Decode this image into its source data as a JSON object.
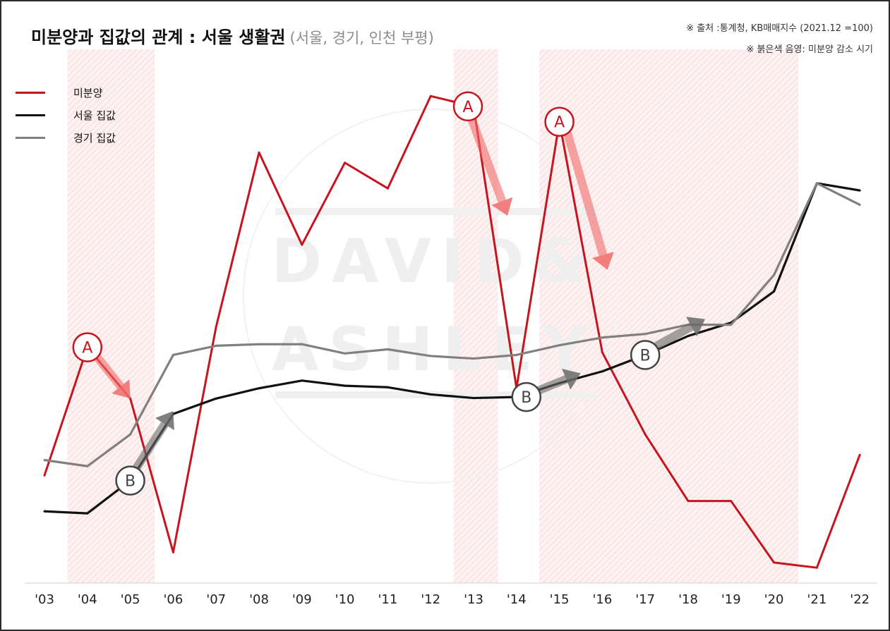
{
  "header": {
    "title": "미분양과 집값의 관계 : 서울 생활권",
    "subtitle": "(서울, 경기, 인천 부평)"
  },
  "notes": {
    "source": "※ 출처 :통계청, KB매매지수 (2021.12 =100)",
    "shading": "※ 붉은색 음영: 미분양 감소 시기"
  },
  "watermark": {
    "line1": "DAVID&",
    "line2": "ASHLEY"
  },
  "colors": {
    "unsold": "#c8141e",
    "seoul": "#111111",
    "gyeonggi": "#808080",
    "shade": "#fbe6e6",
    "arrow_a": "#f26b6b",
    "arrow_b": "#6a6a6a"
  },
  "chart_data": {
    "type": "line",
    "categories": [
      "'03",
      "'04",
      "'05",
      "'06",
      "'07",
      "'08",
      "'09",
      "'10",
      "'11",
      "'12",
      "'13",
      "'14",
      "'15",
      "'16",
      "'17",
      "'18",
      "'19",
      "'20",
      "'21",
      "'22"
    ],
    "series": [
      {
        "name": "미분양",
        "color": "#c8141e",
        "values": [
          21,
          46,
          36,
          6,
          50,
          84,
          66,
          82,
          77,
          95,
          93,
          38,
          90,
          45,
          29,
          16,
          16,
          4,
          3,
          25
        ]
      },
      {
        "name": "서울 집값",
        "color": "#111111",
        "values": [
          14,
          13.6,
          20,
          33,
          36,
          38,
          39.5,
          38.5,
          38.2,
          36.8,
          36.1,
          36.3,
          39,
          41.3,
          44.5,
          48.2,
          50.8,
          56.9,
          78,
          76.6
        ]
      },
      {
        "name": "경기 집값",
        "color": "#808080",
        "values": [
          24,
          22.8,
          29,
          44.5,
          46.3,
          46.6,
          46.6,
          44.8,
          45.6,
          44.3,
          43.8,
          44.5,
          46.4,
          47.9,
          48.6,
          50.4,
          50.4,
          60.1,
          78,
          73.8
        ]
      }
    ],
    "shaded_periods": [
      [
        "'04",
        "'06"
      ],
      [
        "'13",
        "'14"
      ],
      [
        "'15",
        "'21"
      ]
    ],
    "annotations": [
      {
        "label": "A",
        "at": "'04",
        "series": "미분양"
      },
      {
        "label": "A",
        "at": "'13",
        "series": "미분양"
      },
      {
        "label": "A",
        "at": "'15",
        "series": "미분양"
      },
      {
        "label": "B",
        "at": "'05",
        "series": "서울 집값"
      },
      {
        "label": "B",
        "at": "'14",
        "series": "서울 집값"
      },
      {
        "label": "B",
        "at": "'17",
        "series": "서울 집값"
      }
    ],
    "legend_position": "top-left",
    "grid": false,
    "title": "미분양과 집값의 관계 : 서울 생활권",
    "xlabel": "",
    "ylabel": ""
  }
}
